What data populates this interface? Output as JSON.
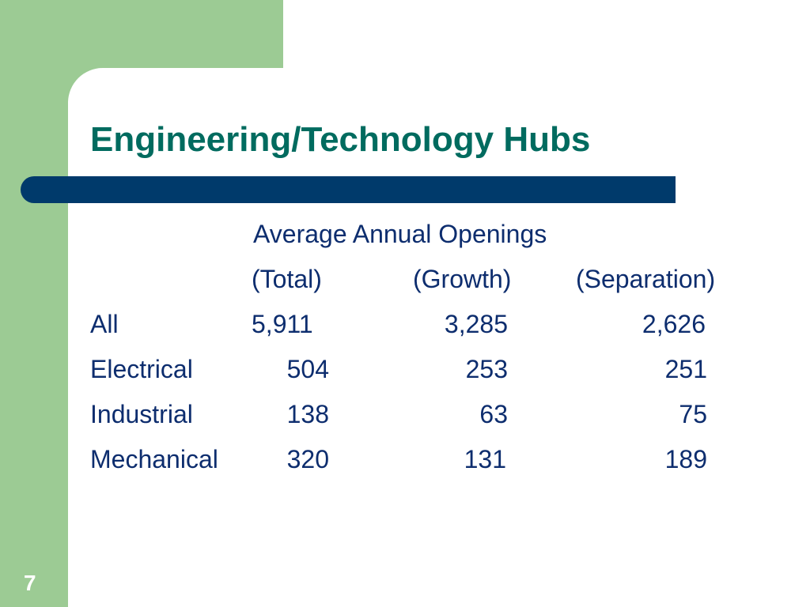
{
  "slide": {
    "title": "Engineering/Technology Hubs",
    "page_number": "7"
  },
  "table": {
    "heading": "Average Annual Openings",
    "columns": [
      "(Total)",
      "(Growth)",
      "(Separation)"
    ],
    "rows": [
      {
        "label": "All",
        "total": "5,911",
        "growth": "3,285",
        "separation": "2,626"
      },
      {
        "label": "Electrical",
        "total": "504",
        "growth": "253",
        "separation": "251"
      },
      {
        "label": "Industrial",
        "total": "138",
        "growth": "63",
        "separation": "75"
      },
      {
        "label": "Mechanical",
        "total": "320",
        "growth": "131",
        "separation": "189"
      }
    ]
  },
  "colors": {
    "background_green": "#9ccb94",
    "title_teal": "#006b5f",
    "bar_navy": "#003a6b",
    "text_navy": "#0d2d6e"
  }
}
